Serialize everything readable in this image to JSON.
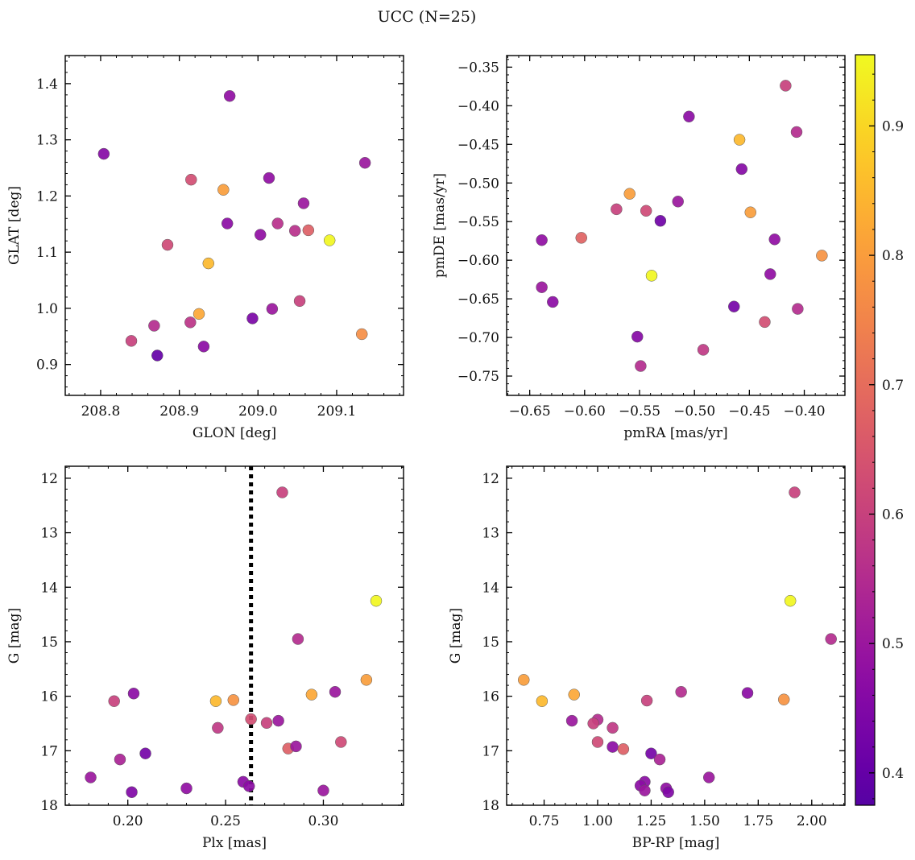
{
  "figure": {
    "title": "UCC (N=25)",
    "colormap": "plasma",
    "colorbar": {
      "min": 0.375,
      "max": 0.955,
      "ticks": [
        0.4,
        0.5,
        0.6,
        0.7,
        0.8,
        0.9
      ],
      "tick_labels": [
        "0.4",
        "0.5",
        "0.6",
        "0.7",
        "0.8",
        "0.9"
      ]
    }
  },
  "chart_data": [
    {
      "type": "scatter",
      "xlabel": "GLON [deg]",
      "ylabel": "GLAT [deg]",
      "xlim": [
        208.755,
        209.185
      ],
      "ylim": [
        0.845,
        1.45
      ],
      "xticks": [
        208.8,
        208.9,
        209.0,
        209.1
      ],
      "xtick_labels": [
        "208.8",
        "208.9",
        "209.0",
        "209.1"
      ],
      "yticks": [
        0.9,
        1.0,
        1.1,
        1.2,
        1.3,
        1.4
      ],
      "ytick_labels": [
        "0.9",
        "1.0",
        "1.1",
        "1.2",
        "1.3",
        "1.4"
      ],
      "invert_y": false,
      "points": [
        {
          "x": 208.964,
          "y": 1.378,
          "c": 0.48
        },
        {
          "x": 208.804,
          "y": 1.275,
          "c": 0.46
        },
        {
          "x": 209.136,
          "y": 1.259,
          "c": 0.5
        },
        {
          "x": 208.915,
          "y": 1.229,
          "c": 0.63
        },
        {
          "x": 209.014,
          "y": 1.232,
          "c": 0.48
        },
        {
          "x": 208.956,
          "y": 1.211,
          "c": 0.8
        },
        {
          "x": 209.058,
          "y": 1.187,
          "c": 0.5
        },
        {
          "x": 208.961,
          "y": 1.151,
          "c": 0.47
        },
        {
          "x": 209.025,
          "y": 1.151,
          "c": 0.56
        },
        {
          "x": 209.003,
          "y": 1.131,
          "c": 0.48
        },
        {
          "x": 209.047,
          "y": 1.138,
          "c": 0.56
        },
        {
          "x": 209.064,
          "y": 1.139,
          "c": 0.67
        },
        {
          "x": 209.091,
          "y": 1.121,
          "c": 0.95
        },
        {
          "x": 208.885,
          "y": 1.113,
          "c": 0.62
        },
        {
          "x": 208.937,
          "y": 1.08,
          "c": 0.85
        },
        {
          "x": 209.018,
          "y": 0.999,
          "c": 0.5
        },
        {
          "x": 208.993,
          "y": 0.982,
          "c": 0.44
        },
        {
          "x": 209.053,
          "y": 1.013,
          "c": 0.6
        },
        {
          "x": 208.925,
          "y": 0.99,
          "c": 0.82
        },
        {
          "x": 208.868,
          "y": 0.969,
          "c": 0.55
        },
        {
          "x": 208.914,
          "y": 0.975,
          "c": 0.57
        },
        {
          "x": 208.839,
          "y": 0.942,
          "c": 0.6
        },
        {
          "x": 208.931,
          "y": 0.932,
          "c": 0.47
        },
        {
          "x": 209.132,
          "y": 0.954,
          "c": 0.77
        },
        {
          "x": 208.872,
          "y": 0.916,
          "c": 0.4
        }
      ]
    },
    {
      "type": "scatter",
      "xlabel": "pmRA [mas/yr]",
      "ylabel": "pmDE [mas/yr]",
      "xlim": [
        -0.671,
        -0.363
      ],
      "ylim": [
        -0.775,
        -0.335
      ],
      "xticks": [
        -0.65,
        -0.6,
        -0.55,
        -0.5,
        -0.45,
        -0.4
      ],
      "xtick_labels": [
        "−0.65",
        "−0.60",
        "−0.55",
        "−0.50",
        "−0.45",
        "−0.40"
      ],
      "yticks": [
        -0.75,
        -0.7,
        -0.65,
        -0.6,
        -0.55,
        -0.5,
        -0.45,
        -0.4,
        -0.35
      ],
      "ytick_labels": [
        "−0.75",
        "−0.70",
        "−0.65",
        "−0.60",
        "−0.55",
        "−0.50",
        "−0.45",
        "−0.40",
        "−0.35"
      ],
      "invert_y": false,
      "points": [
        {
          "x": -0.417,
          "y": -0.374,
          "c": 0.6
        },
        {
          "x": -0.505,
          "y": -0.414,
          "c": 0.47
        },
        {
          "x": -0.407,
          "y": -0.434,
          "c": 0.55
        },
        {
          "x": -0.459,
          "y": -0.444,
          "c": 0.85
        },
        {
          "x": -0.457,
          "y": -0.482,
          "c": 0.46
        },
        {
          "x": -0.559,
          "y": -0.514,
          "c": 0.8
        },
        {
          "x": -0.515,
          "y": -0.524,
          "c": 0.5
        },
        {
          "x": -0.571,
          "y": -0.534,
          "c": 0.6
        },
        {
          "x": -0.544,
          "y": -0.536,
          "c": 0.62
        },
        {
          "x": -0.449,
          "y": -0.538,
          "c": 0.8
        },
        {
          "x": -0.531,
          "y": -0.549,
          "c": 0.42
        },
        {
          "x": -0.603,
          "y": -0.571,
          "c": 0.68
        },
        {
          "x": -0.639,
          "y": -0.574,
          "c": 0.48
        },
        {
          "x": -0.427,
          "y": -0.573,
          "c": 0.48
        },
        {
          "x": -0.384,
          "y": -0.594,
          "c": 0.78
        },
        {
          "x": -0.539,
          "y": -0.62,
          "c": 0.95
        },
        {
          "x": -0.431,
          "y": -0.618,
          "c": 0.48
        },
        {
          "x": -0.639,
          "y": -0.635,
          "c": 0.5
        },
        {
          "x": -0.629,
          "y": -0.654,
          "c": 0.47
        },
        {
          "x": -0.464,
          "y": -0.66,
          "c": 0.43
        },
        {
          "x": -0.406,
          "y": -0.663,
          "c": 0.55
        },
        {
          "x": -0.436,
          "y": -0.68,
          "c": 0.63
        },
        {
          "x": -0.552,
          "y": -0.699,
          "c": 0.46
        },
        {
          "x": -0.492,
          "y": -0.716,
          "c": 0.58
        },
        {
          "x": -0.549,
          "y": -0.737,
          "c": 0.55
        }
      ]
    },
    {
      "type": "scatter",
      "xlabel": "Plx [mas]",
      "ylabel": "G [mag]",
      "xlim": [
        0.168,
        0.341
      ],
      "ylim": [
        11.78,
        18.0
      ],
      "xticks": [
        0.2,
        0.25,
        0.3
      ],
      "xtick_labels": [
        "0.20",
        "0.25",
        "0.30"
      ],
      "yticks": [
        12,
        13,
        14,
        15,
        16,
        17,
        18
      ],
      "ytick_labels": [
        "12",
        "13",
        "14",
        "15",
        "16",
        "17",
        "18"
      ],
      "invert_y": true,
      "vline": {
        "x": 0.263,
        "style": "dotted"
      },
      "points": [
        {
          "x": 0.279,
          "y": 12.26,
          "c": 0.6
        },
        {
          "x": 0.327,
          "y": 14.25,
          "c": 0.95
        },
        {
          "x": 0.287,
          "y": 14.95,
          "c": 0.55
        },
        {
          "x": 0.322,
          "y": 15.7,
          "c": 0.8
        },
        {
          "x": 0.203,
          "y": 15.95,
          "c": 0.47
        },
        {
          "x": 0.294,
          "y": 15.97,
          "c": 0.82
        },
        {
          "x": 0.306,
          "y": 15.92,
          "c": 0.5
        },
        {
          "x": 0.193,
          "y": 16.09,
          "c": 0.6
        },
        {
          "x": 0.245,
          "y": 16.09,
          "c": 0.85
        },
        {
          "x": 0.254,
          "y": 16.07,
          "c": 0.78
        },
        {
          "x": 0.263,
          "y": 16.42,
          "c": 0.63
        },
        {
          "x": 0.277,
          "y": 16.45,
          "c": 0.5
        },
        {
          "x": 0.271,
          "y": 16.49,
          "c": 0.6
        },
        {
          "x": 0.246,
          "y": 16.58,
          "c": 0.58
        },
        {
          "x": 0.309,
          "y": 16.84,
          "c": 0.62
        },
        {
          "x": 0.282,
          "y": 16.96,
          "c": 0.67
        },
        {
          "x": 0.286,
          "y": 16.92,
          "c": 0.5
        },
        {
          "x": 0.209,
          "y": 17.05,
          "c": 0.43
        },
        {
          "x": 0.196,
          "y": 17.16,
          "c": 0.53
        },
        {
          "x": 0.181,
          "y": 17.49,
          "c": 0.5
        },
        {
          "x": 0.259,
          "y": 17.57,
          "c": 0.47
        },
        {
          "x": 0.262,
          "y": 17.65,
          "c": 0.47
        },
        {
          "x": 0.23,
          "y": 17.69,
          "c": 0.48
        },
        {
          "x": 0.3,
          "y": 17.73,
          "c": 0.5
        },
        {
          "x": 0.202,
          "y": 17.76,
          "c": 0.45
        }
      ]
    },
    {
      "type": "scatter",
      "xlabel": "BP-RP [mag]",
      "ylabel": "G [mag]",
      "xlim": [
        0.575,
        2.155
      ],
      "ylim": [
        11.78,
        18.0
      ],
      "xticks": [
        0.75,
        1.0,
        1.25,
        1.5,
        1.75,
        2.0
      ],
      "xtick_labels": [
        "0.75",
        "1.00",
        "1.25",
        "1.50",
        "1.75",
        "2.00"
      ],
      "yticks": [
        12,
        13,
        14,
        15,
        16,
        17,
        18
      ],
      "ytick_labels": [
        "12",
        "13",
        "14",
        "15",
        "16",
        "17",
        "18"
      ],
      "invert_y": true,
      "points": [
        {
          "x": 1.92,
          "y": 12.26,
          "c": 0.6
        },
        {
          "x": 1.9,
          "y": 14.25,
          "c": 0.95
        },
        {
          "x": 2.09,
          "y": 14.95,
          "c": 0.55
        },
        {
          "x": 0.655,
          "y": 15.7,
          "c": 0.8
        },
        {
          "x": 0.74,
          "y": 16.09,
          "c": 0.85
        },
        {
          "x": 0.89,
          "y": 15.97,
          "c": 0.82
        },
        {
          "x": 1.39,
          "y": 15.92,
          "c": 0.55
        },
        {
          "x": 1.7,
          "y": 15.94,
          "c": 0.47
        },
        {
          "x": 1.87,
          "y": 16.06,
          "c": 0.78
        },
        {
          "x": 1.23,
          "y": 16.08,
          "c": 0.6
        },
        {
          "x": 0.88,
          "y": 16.45,
          "c": 0.5
        },
        {
          "x": 1.0,
          "y": 16.43,
          "c": 0.55
        },
        {
          "x": 0.98,
          "y": 16.5,
          "c": 0.6
        },
        {
          "x": 1.07,
          "y": 16.58,
          "c": 0.58
        },
        {
          "x": 1.0,
          "y": 16.84,
          "c": 0.62
        },
        {
          "x": 1.07,
          "y": 16.93,
          "c": 0.47
        },
        {
          "x": 1.12,
          "y": 16.97,
          "c": 0.67
        },
        {
          "x": 1.25,
          "y": 17.05,
          "c": 0.43
        },
        {
          "x": 1.29,
          "y": 17.16,
          "c": 0.53
        },
        {
          "x": 1.52,
          "y": 17.49,
          "c": 0.5
        },
        {
          "x": 1.22,
          "y": 17.57,
          "c": 0.47
        },
        {
          "x": 1.2,
          "y": 17.64,
          "c": 0.47
        },
        {
          "x": 1.32,
          "y": 17.69,
          "c": 0.48
        },
        {
          "x": 1.22,
          "y": 17.73,
          "c": 0.5
        },
        {
          "x": 1.33,
          "y": 17.76,
          "c": 0.45
        }
      ]
    }
  ]
}
